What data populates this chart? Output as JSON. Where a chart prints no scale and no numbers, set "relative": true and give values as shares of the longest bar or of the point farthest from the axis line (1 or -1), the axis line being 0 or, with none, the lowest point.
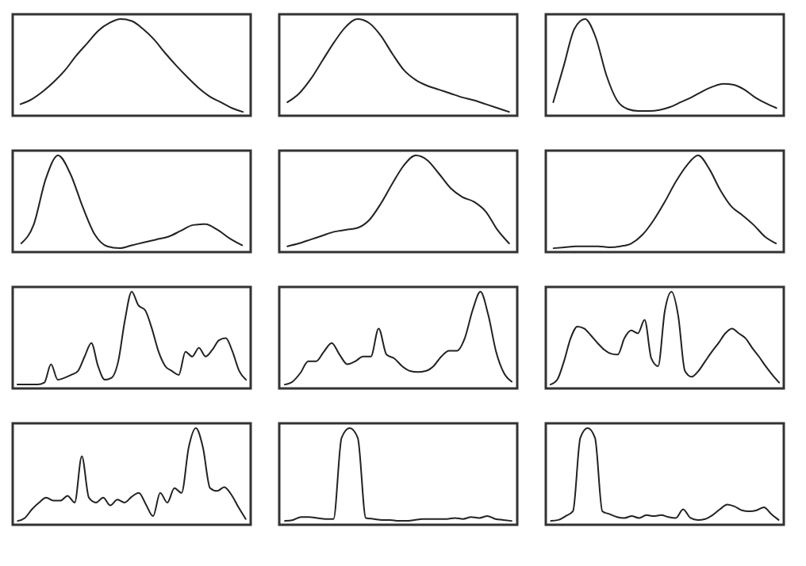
{
  "chart_data": [
    {
      "type": "line",
      "relative": true,
      "tick_labels": false,
      "color": "#222222",
      "categories": [
        null,
        null,
        null,
        null,
        null,
        null,
        null,
        null,
        null,
        null,
        null,
        null,
        null,
        null,
        null,
        null,
        null,
        null,
        null,
        null,
        null
      ],
      "values": [
        0.12,
        0.17,
        0.25,
        0.35,
        0.47,
        0.62,
        0.75,
        0.88,
        0.96,
        1.0,
        0.98,
        0.9,
        0.79,
        0.65,
        0.52,
        0.4,
        0.29,
        0.2,
        0.14,
        0.08,
        0.04
      ]
    },
    {
      "type": "line",
      "relative": true,
      "tick_labels": false,
      "color": "#222222",
      "categories": [
        null,
        null,
        null,
        null,
        null,
        null,
        null,
        null,
        null,
        null,
        null,
        null,
        null,
        null,
        null,
        null,
        null,
        null,
        null,
        null
      ],
      "values": [
        0.14,
        0.23,
        0.38,
        0.57,
        0.76,
        0.92,
        1.0,
        0.96,
        0.83,
        0.64,
        0.47,
        0.37,
        0.31,
        0.27,
        0.23,
        0.19,
        0.16,
        0.12,
        0.08,
        0.04
      ]
    },
    {
      "type": "line",
      "relative": true,
      "tick_labels": false,
      "color": "#222222",
      "categories": [
        null,
        null,
        null,
        null,
        null,
        null,
        null,
        null,
        null,
        null,
        null,
        null,
        null,
        null,
        null,
        null,
        null,
        null,
        null,
        null,
        null,
        null
      ],
      "values": [
        0.14,
        0.52,
        0.9,
        1.0,
        0.81,
        0.42,
        0.16,
        0.07,
        0.05,
        0.05,
        0.06,
        0.09,
        0.14,
        0.19,
        0.25,
        0.3,
        0.33,
        0.32,
        0.27,
        0.19,
        0.13,
        0.08
      ]
    },
    {
      "type": "line",
      "relative": true,
      "tick_labels": false,
      "color": "#222222",
      "categories": [
        null,
        null,
        null,
        null,
        null,
        null,
        null,
        null,
        null,
        null,
        null,
        null,
        null,
        null,
        null,
        null,
        null,
        null,
        null
      ],
      "values": [
        0.09,
        0.28,
        0.76,
        1.0,
        0.81,
        0.47,
        0.18,
        0.06,
        0.04,
        0.07,
        0.1,
        0.13,
        0.16,
        0.22,
        0.28,
        0.29,
        0.23,
        0.14,
        0.07
      ]
    },
    {
      "type": "line",
      "relative": true,
      "tick_labels": false,
      "color": "#222222",
      "categories": [
        null,
        null,
        null,
        null,
        null,
        null,
        null,
        null,
        null,
        null,
        null,
        null,
        null,
        null,
        null,
        null,
        null,
        null,
        null,
        null
      ],
      "values": [
        0.06,
        0.09,
        0.13,
        0.17,
        0.21,
        0.23,
        0.25,
        0.33,
        0.5,
        0.71,
        0.9,
        1.0,
        0.95,
        0.81,
        0.66,
        0.57,
        0.52,
        0.42,
        0.23,
        0.09
      ]
    },
    {
      "type": "line",
      "relative": true,
      "tick_labels": false,
      "color": "#222222",
      "categories": [
        null,
        null,
        null,
        null,
        null,
        null,
        null,
        null,
        null,
        null,
        null,
        null,
        null,
        null,
        null,
        null,
        null,
        null,
        null,
        null,
        null
      ],
      "values": [
        0.04,
        0.05,
        0.06,
        0.06,
        0.06,
        0.05,
        0.06,
        0.09,
        0.18,
        0.33,
        0.52,
        0.73,
        0.9,
        1.0,
        0.86,
        0.64,
        0.47,
        0.38,
        0.28,
        0.16,
        0.09
      ]
    },
    {
      "type": "line",
      "relative": true,
      "tick_labels": false,
      "color": "#222222",
      "categories": [
        null,
        null,
        null,
        null,
        null,
        null,
        null,
        null,
        null,
        null,
        null,
        null,
        null,
        null,
        null,
        null,
        null,
        null,
        null,
        null,
        null,
        null,
        null,
        null,
        null,
        null,
        null,
        null,
        null,
        null,
        null,
        null,
        null,
        null,
        null
      ],
      "values": [
        0.04,
        0.04,
        0.04,
        0.04,
        0.06,
        0.25,
        0.09,
        0.11,
        0.14,
        0.18,
        0.33,
        0.47,
        0.23,
        0.09,
        0.11,
        0.28,
        0.71,
        1.0,
        0.86,
        0.81,
        0.62,
        0.38,
        0.23,
        0.18,
        0.14,
        0.38,
        0.33,
        0.42,
        0.33,
        0.4,
        0.5,
        0.52,
        0.38,
        0.18,
        0.09
      ]
    },
    {
      "type": "line",
      "relative": true,
      "tick_labels": false,
      "color": "#222222",
      "categories": [
        null,
        null,
        null,
        null,
        null,
        null,
        null,
        null,
        null,
        null,
        null,
        null,
        null,
        null,
        null,
        null,
        null,
        null,
        null,
        null,
        null,
        null,
        null,
        null,
        null,
        null,
        null,
        null,
        null,
        null
      ],
      "values": [
        0.04,
        0.07,
        0.16,
        0.28,
        0.28,
        0.38,
        0.47,
        0.35,
        0.25,
        0.28,
        0.33,
        0.33,
        0.62,
        0.35,
        0.31,
        0.23,
        0.18,
        0.17,
        0.18,
        0.23,
        0.33,
        0.39,
        0.39,
        0.52,
        0.81,
        1.0,
        0.76,
        0.38,
        0.16,
        0.07
      ]
    },
    {
      "type": "line",
      "relative": true,
      "tick_labels": false,
      "color": "#222222",
      "categories": [
        null,
        null,
        null,
        null,
        null,
        null,
        null,
        null,
        null,
        null,
        null,
        null,
        null,
        null,
        null,
        null,
        null,
        null,
        null,
        null,
        null,
        null,
        null,
        null,
        null,
        null,
        null,
        null,
        null,
        null,
        null,
        null,
        null,
        null,
        null
      ],
      "values": [
        0.04,
        0.09,
        0.28,
        0.52,
        0.64,
        0.62,
        0.55,
        0.47,
        0.4,
        0.36,
        0.35,
        0.52,
        0.6,
        0.57,
        0.71,
        0.31,
        0.23,
        0.8,
        1.0,
        0.75,
        0.18,
        0.12,
        0.18,
        0.28,
        0.38,
        0.47,
        0.57,
        0.62,
        0.57,
        0.52,
        0.42,
        0.33,
        0.23,
        0.14,
        0.06
      ]
    },
    {
      "type": "line",
      "relative": true,
      "tick_labels": false,
      "color": "#222222",
      "categories": [
        null,
        null,
        null,
        null,
        null,
        null,
        null,
        null,
        null,
        null,
        null,
        null,
        null,
        null,
        null,
        null,
        null,
        null,
        null,
        null,
        null,
        null,
        null,
        null,
        null,
        null,
        null,
        null,
        null,
        null,
        null,
        null,
        null
      ],
      "values": [
        0.04,
        0.07,
        0.16,
        0.23,
        0.28,
        0.25,
        0.25,
        0.3,
        0.23,
        0.71,
        0.28,
        0.23,
        0.28,
        0.2,
        0.26,
        0.23,
        0.29,
        0.33,
        0.21,
        0.09,
        0.33,
        0.23,
        0.38,
        0.33,
        0.8,
        1.0,
        0.8,
        0.38,
        0.35,
        0.39,
        0.31,
        0.18,
        0.06
      ]
    },
    {
      "type": "line",
      "relative": true,
      "tick_labels": false,
      "color": "#222222",
      "categories": [
        null,
        null,
        null,
        null,
        null,
        null,
        null,
        null,
        null,
        null,
        null,
        null,
        null,
        null,
        null,
        null,
        null,
        null,
        null,
        null,
        null,
        null,
        null,
        null,
        null,
        null,
        null,
        null,
        null
      ],
      "values": [
        0.04,
        0.05,
        0.08,
        0.08,
        0.07,
        0.06,
        0.06,
        0.9,
        1.0,
        0.9,
        0.07,
        0.06,
        0.05,
        0.05,
        0.04,
        0.04,
        0.05,
        0.06,
        0.06,
        0.06,
        0.06,
        0.07,
        0.06,
        0.08,
        0.07,
        0.09,
        0.06,
        0.05,
        0.04
      ]
    },
    {
      "type": "line",
      "relative": true,
      "tick_labels": false,
      "color": "#222222",
      "categories": [
        null,
        null,
        null,
        null,
        null,
        null,
        null,
        null,
        null,
        null,
        null,
        null,
        null,
        null,
        null,
        null,
        null,
        null,
        null,
        null,
        null,
        null,
        null,
        null,
        null,
        null,
        null,
        null,
        null,
        null,
        null,
        null
      ],
      "values": [
        0.04,
        0.05,
        0.09,
        0.14,
        0.9,
        1.0,
        0.9,
        0.14,
        0.11,
        0.08,
        0.07,
        0.09,
        0.07,
        0.1,
        0.09,
        0.1,
        0.08,
        0.07,
        0.16,
        0.07,
        0.05,
        0.06,
        0.1,
        0.16,
        0.21,
        0.19,
        0.15,
        0.14,
        0.15,
        0.18,
        0.11,
        0.05
      ]
    }
  ]
}
